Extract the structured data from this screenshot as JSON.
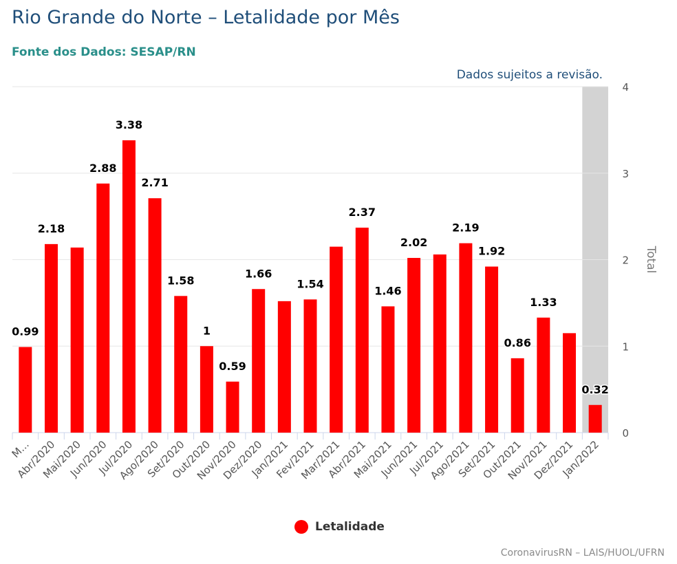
{
  "header": {
    "title": "Rio Grande do Norte – Letalidade por Mês",
    "subtitle": "Fonte dos Dados: SESAP/RN",
    "note": "Dados sujeitos a revisão."
  },
  "credits": "CoronavirusRN – LAIS/HUOL/UFRN",
  "colors": {
    "bar": "#ff0000",
    "highlight_band": "#d3d3d3",
    "title": "#1f4e79",
    "subtitle": "#2a8f8a"
  },
  "chart_data": {
    "type": "bar",
    "categories": [
      "M...",
      "Abr/2020",
      "Mai/2020",
      "Jun/2020",
      "Jul/2020",
      "Ago/2020",
      "Set/2020",
      "Out/2020",
      "Nov/2020",
      "Dez/2020",
      "Jan/2021",
      "Fev/2021",
      "Mar/2021",
      "Abr/2021",
      "Mai/2021",
      "Jun/2021",
      "Jul/2021",
      "Ago/2021",
      "Set/2021",
      "Out/2021",
      "Nov/2021",
      "Dez/2021",
      "Jan/2022"
    ],
    "series": [
      {
        "name": "Letalidade",
        "values": [
          0.99,
          2.18,
          2.14,
          2.88,
          3.38,
          2.71,
          1.58,
          1,
          0.59,
          1.66,
          1.52,
          1.54,
          2.15,
          2.37,
          1.46,
          2.02,
          2.06,
          2.19,
          1.92,
          0.86,
          1.33,
          1.15,
          0.32
        ]
      }
    ],
    "data_labels": [
      "0.99",
      "2.18",
      "",
      "2.88",
      "3.38",
      "2.71",
      "1.58",
      "1",
      "0.59",
      "1.66",
      "",
      "1.54",
      "",
      "2.37",
      "1.46",
      "2.02",
      "",
      "2.19",
      "1.92",
      "0.86",
      "1.33",
      "",
      "0.32"
    ],
    "ylabel": "Total",
    "y_ticks": [
      "0",
      "1",
      "2",
      "3",
      "4"
    ],
    "ylim": [
      0,
      4
    ],
    "y_axis_side": "right",
    "highlighted_category": "Jan/2022",
    "grid": true,
    "legend_position": "bottom-center"
  }
}
